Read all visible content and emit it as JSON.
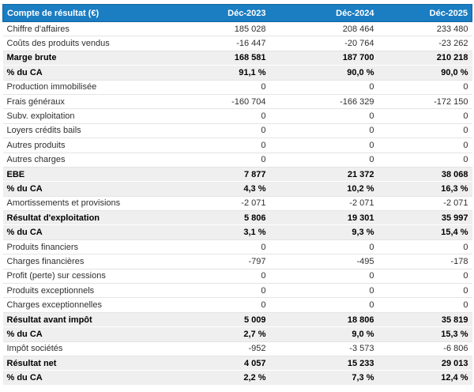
{
  "colors": {
    "header_bg": "#1b7dc2",
    "header_border": "#1266a0",
    "header_text": "#ffffff",
    "section_bg": "#efefef",
    "row_border": "#e4e4e4",
    "text": "#2f2f2f"
  },
  "table": {
    "header": {
      "account_label": "Compte de résultat (€)",
      "columns": [
        "Déc-2023",
        "Déc-2024",
        "Déc-2025"
      ]
    },
    "rows": [
      {
        "label": "Chiffre d'affaires",
        "values": [
          "185 028",
          "208 464",
          "233 480"
        ],
        "section": false
      },
      {
        "label": "Coûts des produits vendus",
        "values": [
          "-16 447",
          "-20 764",
          "-23 262"
        ],
        "section": false
      },
      {
        "label": "Marge brute",
        "values": [
          "168 581",
          "187 700",
          "210 218"
        ],
        "section": true
      },
      {
        "label": "% du CA",
        "values": [
          "91,1 %",
          "90,0 %",
          "90,0 %"
        ],
        "section": true
      },
      {
        "label": "Production immobilisée",
        "values": [
          "0",
          "0",
          "0"
        ],
        "section": false
      },
      {
        "label": "Frais généraux",
        "values": [
          "-160 704",
          "-166 329",
          "-172 150"
        ],
        "section": false
      },
      {
        "label": "Subv. exploitation",
        "values": [
          "0",
          "0",
          "0"
        ],
        "section": false
      },
      {
        "label": "Loyers crédits bails",
        "values": [
          "0",
          "0",
          "0"
        ],
        "section": false
      },
      {
        "label": "Autres produits",
        "values": [
          "0",
          "0",
          "0"
        ],
        "section": false
      },
      {
        "label": "Autres charges",
        "values": [
          "0",
          "0",
          "0"
        ],
        "section": false
      },
      {
        "label": "EBE",
        "values": [
          "7 877",
          "21 372",
          "38 068"
        ],
        "section": true
      },
      {
        "label": "% du CA",
        "values": [
          "4,3 %",
          "10,2 %",
          "16,3 %"
        ],
        "section": true
      },
      {
        "label": "Amortissements et provisions",
        "values": [
          "-2 071",
          "-2 071",
          "-2 071"
        ],
        "section": false
      },
      {
        "label": "Résultat d'exploitation",
        "values": [
          "5 806",
          "19 301",
          "35 997"
        ],
        "section": true
      },
      {
        "label": "% du CA",
        "values": [
          "3,1 %",
          "9,3 %",
          "15,4 %"
        ],
        "section": true
      },
      {
        "label": "Produits financiers",
        "values": [
          "0",
          "0",
          "0"
        ],
        "section": false
      },
      {
        "label": "Charges financières",
        "values": [
          "-797",
          "-495",
          "-178"
        ],
        "section": false
      },
      {
        "label": "Profit (perte) sur cessions",
        "values": [
          "0",
          "0",
          "0"
        ],
        "section": false
      },
      {
        "label": "Produits exceptionnels",
        "values": [
          "0",
          "0",
          "0"
        ],
        "section": false
      },
      {
        "label": "Charges exceptionnelles",
        "values": [
          "0",
          "0",
          "0"
        ],
        "section": false
      },
      {
        "label": "Résultat avant impôt",
        "values": [
          "5 009",
          "18 806",
          "35 819"
        ],
        "section": true
      },
      {
        "label": "% du CA",
        "values": [
          "2,7 %",
          "9,0 %",
          "15,3 %"
        ],
        "section": true
      },
      {
        "label": "Impôt sociétés",
        "values": [
          "-952",
          "-3 573",
          "-6 806"
        ],
        "section": false
      },
      {
        "label": "Résultat net",
        "values": [
          "4 057",
          "15 233",
          "29 013"
        ],
        "section": true
      },
      {
        "label": "% du CA",
        "values": [
          "2,2 %",
          "7,3 %",
          "12,4 %"
        ],
        "section": true
      }
    ]
  },
  "chart_data": {
    "type": "table",
    "title": "Compte de résultat (€)",
    "columns": [
      "Déc-2023",
      "Déc-2024",
      "Déc-2025"
    ],
    "currency": "EUR",
    "rows": [
      {
        "label": "Chiffre d'affaires",
        "values": [
          185028,
          208464,
          233480
        ]
      },
      {
        "label": "Coûts des produits vendus",
        "values": [
          -16447,
          -20764,
          -23262
        ]
      },
      {
        "label": "Marge brute",
        "values": [
          168581,
          187700,
          210218
        ],
        "emphasized": true
      },
      {
        "label": "% du CA",
        "values": [
          91.1,
          90.0,
          90.0
        ],
        "unit": "%",
        "emphasized": true
      },
      {
        "label": "Production immobilisée",
        "values": [
          0,
          0,
          0
        ]
      },
      {
        "label": "Frais généraux",
        "values": [
          -160704,
          -166329,
          -172150
        ]
      },
      {
        "label": "Subv. exploitation",
        "values": [
          0,
          0,
          0
        ]
      },
      {
        "label": "Loyers crédits bails",
        "values": [
          0,
          0,
          0
        ]
      },
      {
        "label": "Autres produits",
        "values": [
          0,
          0,
          0
        ]
      },
      {
        "label": "Autres charges",
        "values": [
          0,
          0,
          0
        ]
      },
      {
        "label": "EBE",
        "values": [
          7877,
          21372,
          38068
        ],
        "emphasized": true
      },
      {
        "label": "% du CA",
        "values": [
          4.3,
          10.2,
          16.3
        ],
        "unit": "%",
        "emphasized": true
      },
      {
        "label": "Amortissements et provisions",
        "values": [
          -2071,
          -2071,
          -2071
        ]
      },
      {
        "label": "Résultat d'exploitation",
        "values": [
          5806,
          19301,
          35997
        ],
        "emphasized": true
      },
      {
        "label": "% du CA",
        "values": [
          3.1,
          9.3,
          15.4
        ],
        "unit": "%",
        "emphasized": true
      },
      {
        "label": "Produits financiers",
        "values": [
          0,
          0,
          0
        ]
      },
      {
        "label": "Charges financières",
        "values": [
          -797,
          -495,
          -178
        ]
      },
      {
        "label": "Profit (perte) sur cessions",
        "values": [
          0,
          0,
          0
        ]
      },
      {
        "label": "Produits exceptionnels",
        "values": [
          0,
          0,
          0
        ]
      },
      {
        "label": "Charges exceptionnelles",
        "values": [
          0,
          0,
          0
        ]
      },
      {
        "label": "Résultat avant impôt",
        "values": [
          5009,
          18806,
          35819
        ],
        "emphasized": true
      },
      {
        "label": "% du CA",
        "values": [
          2.7,
          9.0,
          15.3
        ],
        "unit": "%",
        "emphasized": true
      },
      {
        "label": "Impôt sociétés",
        "values": [
          -952,
          -3573,
          -6806
        ]
      },
      {
        "label": "Résultat net",
        "values": [
          4057,
          15233,
          29013
        ],
        "emphasized": true
      },
      {
        "label": "% du CA",
        "values": [
          2.2,
          7.3,
          12.4
        ],
        "unit": "%",
        "emphasized": true
      }
    ]
  }
}
